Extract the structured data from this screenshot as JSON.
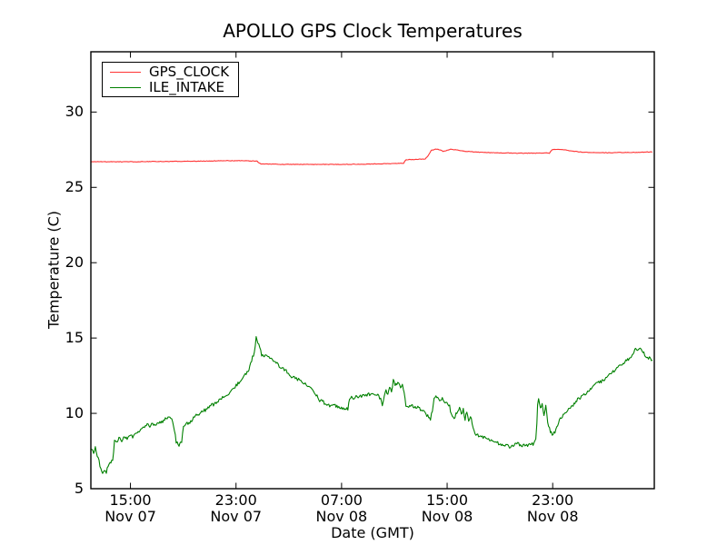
{
  "chart_data": {
    "type": "line",
    "title": "APOLLO GPS Clock Temperatures",
    "xlabel": "Date (GMT)",
    "ylabel": "Temperature (C)",
    "x_unit": "hours since Nov 07 12:00 GMT",
    "xlim": [
      0,
      42.7
    ],
    "ylim": [
      5,
      34
    ],
    "grid": false,
    "frame_color": "#000000",
    "y_ticks": [
      5,
      10,
      15,
      20,
      25,
      30
    ],
    "x_ticks": [
      {
        "h": 3,
        "time": "15:00",
        "date": "Nov 07"
      },
      {
        "h": 11,
        "time": "23:00",
        "date": "Nov 07"
      },
      {
        "h": 19,
        "time": "07:00",
        "date": "Nov 08"
      },
      {
        "h": 27,
        "time": "15:00",
        "date": "Nov 08"
      },
      {
        "h": 35,
        "time": "23:00",
        "date": "Nov 08"
      }
    ],
    "legend": {
      "position": "upper left"
    },
    "series": [
      {
        "name": "GPS_CLOCK",
        "color": "#ff3333",
        "noise": 0.018,
        "points": [
          [
            0,
            26.7
          ],
          [
            2.75,
            26.7
          ],
          [
            5.5,
            26.72
          ],
          [
            8.25,
            26.74
          ],
          [
            10.3,
            26.77
          ],
          [
            11.7,
            26.77
          ],
          [
            12.6,
            26.74
          ],
          [
            12.75,
            26.62
          ],
          [
            12.9,
            26.56
          ],
          [
            14.45,
            26.53
          ],
          [
            17.2,
            26.52
          ],
          [
            19.95,
            26.53
          ],
          [
            22.0,
            26.56
          ],
          [
            23.7,
            26.6
          ],
          [
            23.8,
            26.75
          ],
          [
            23.9,
            26.84
          ],
          [
            24.8,
            26.86
          ],
          [
            25.35,
            26.89
          ],
          [
            25.55,
            27.1
          ],
          [
            25.8,
            27.45
          ],
          [
            26.15,
            27.54
          ],
          [
            26.45,
            27.5
          ],
          [
            26.7,
            27.38
          ],
          [
            27.0,
            27.46
          ],
          [
            27.25,
            27.52
          ],
          [
            27.55,
            27.5
          ],
          [
            27.9,
            27.46
          ],
          [
            28.2,
            27.41
          ],
          [
            28.9,
            27.36
          ],
          [
            29.95,
            27.31
          ],
          [
            31.0,
            27.29
          ],
          [
            32.35,
            27.27
          ],
          [
            33.7,
            27.27
          ],
          [
            34.75,
            27.28
          ],
          [
            34.85,
            27.38
          ],
          [
            34.95,
            27.48
          ],
          [
            35.05,
            27.51
          ],
          [
            35.3,
            27.52
          ],
          [
            35.8,
            27.5
          ],
          [
            36.35,
            27.42
          ],
          [
            37.15,
            27.34
          ],
          [
            38.2,
            27.31
          ],
          [
            39.25,
            27.3
          ],
          [
            40.6,
            27.32
          ],
          [
            41.65,
            27.33
          ],
          [
            42.55,
            27.35
          ]
        ]
      },
      {
        "name": "ILE_INTAKE",
        "color": "#008000",
        "noise": 0.11,
        "points": [
          [
            0,
            7.6
          ],
          [
            0.21,
            7.4
          ],
          [
            0.34,
            7.8
          ],
          [
            0.48,
            7.2
          ],
          [
            0.62,
            6.8
          ],
          [
            0.76,
            6.3
          ],
          [
            0.89,
            5.95
          ],
          [
            1.03,
            6.3
          ],
          [
            1.17,
            6.1
          ],
          [
            1.31,
            6.5
          ],
          [
            1.45,
            6.75
          ],
          [
            1.65,
            6.8
          ],
          [
            1.72,
            7.5
          ],
          [
            1.79,
            8.2
          ],
          [
            1.93,
            8.1
          ],
          [
            2.13,
            8.4
          ],
          [
            2.34,
            8.2
          ],
          [
            2.55,
            8.5
          ],
          [
            2.75,
            8.3
          ],
          [
            2.96,
            8.6
          ],
          [
            3.17,
            8.4
          ],
          [
            3.44,
            8.7
          ],
          [
            3.72,
            8.9
          ],
          [
            3.99,
            9.1
          ],
          [
            4.27,
            9.3
          ],
          [
            4.47,
            9.1
          ],
          [
            4.68,
            9.35
          ],
          [
            4.89,
            9.2
          ],
          [
            5.09,
            9.45
          ],
          [
            5.3,
            9.35
          ],
          [
            5.51,
            9.55
          ],
          [
            5.71,
            9.65
          ],
          [
            5.92,
            9.8
          ],
          [
            6.13,
            9.6
          ],
          [
            6.33,
            8.9
          ],
          [
            6.47,
            8.1
          ],
          [
            6.68,
            7.85
          ],
          [
            6.88,
            8.1
          ],
          [
            7.02,
            9.1
          ],
          [
            7.23,
            9.4
          ],
          [
            7.43,
            9.3
          ],
          [
            7.71,
            9.6
          ],
          [
            7.98,
            9.9
          ],
          [
            8.26,
            10.0
          ],
          [
            8.53,
            10.15
          ],
          [
            8.81,
            10.3
          ],
          [
            9.08,
            10.55
          ],
          [
            9.36,
            10.6
          ],
          [
            9.64,
            10.8
          ],
          [
            9.98,
            11.05
          ],
          [
            10.32,
            11.25
          ],
          [
            10.67,
            11.55
          ],
          [
            11.01,
            11.85
          ],
          [
            11.36,
            12.15
          ],
          [
            11.7,
            12.55
          ],
          [
            11.98,
            12.95
          ],
          [
            12.18,
            13.5
          ],
          [
            12.39,
            14.1
          ],
          [
            12.53,
            15.0
          ],
          [
            12.66,
            14.75
          ],
          [
            12.8,
            14.4
          ],
          [
            12.94,
            13.9
          ],
          [
            13.21,
            13.8
          ],
          [
            13.49,
            13.7
          ],
          [
            13.76,
            13.6
          ],
          [
            14.11,
            13.3
          ],
          [
            14.45,
            13.0
          ],
          [
            14.8,
            12.8
          ],
          [
            15.14,
            12.5
          ],
          [
            15.49,
            12.35
          ],
          [
            15.83,
            12.2
          ],
          [
            16.17,
            11.95
          ],
          [
            16.52,
            11.8
          ],
          [
            16.86,
            11.5
          ],
          [
            17.14,
            11.15
          ],
          [
            17.34,
            10.8
          ],
          [
            17.48,
            11.0
          ],
          [
            17.69,
            10.7
          ],
          [
            17.89,
            10.6
          ],
          [
            18.17,
            10.5
          ],
          [
            18.44,
            10.5
          ],
          [
            18.72,
            10.45
          ],
          [
            18.99,
            10.4
          ],
          [
            19.27,
            10.3
          ],
          [
            19.48,
            10.3
          ],
          [
            19.61,
            11.0
          ],
          [
            19.89,
            11.05
          ],
          [
            20.17,
            11.1
          ],
          [
            20.51,
            11.15
          ],
          [
            20.85,
            11.2
          ],
          [
            21.2,
            11.3
          ],
          [
            21.54,
            11.3
          ],
          [
            21.82,
            11.15
          ],
          [
            21.96,
            10.95
          ],
          [
            22.09,
            10.55
          ],
          [
            22.23,
            11.1
          ],
          [
            22.37,
            11.5
          ],
          [
            22.51,
            11.25
          ],
          [
            22.64,
            11.7
          ],
          [
            22.78,
            11.5
          ],
          [
            22.92,
            12.15
          ],
          [
            23.06,
            11.95
          ],
          [
            23.19,
            11.8
          ],
          [
            23.33,
            12.1
          ],
          [
            23.47,
            11.65
          ],
          [
            23.61,
            11.9
          ],
          [
            23.74,
            11.3
          ],
          [
            23.88,
            10.5
          ],
          [
            24.16,
            10.45
          ],
          [
            24.43,
            10.5
          ],
          [
            24.71,
            10.4
          ],
          [
            24.98,
            10.25
          ],
          [
            25.26,
            10.05
          ],
          [
            25.53,
            9.85
          ],
          [
            25.74,
            9.65
          ],
          [
            25.88,
            10.2
          ],
          [
            26.01,
            11.05
          ],
          [
            26.22,
            11.1
          ],
          [
            26.43,
            10.9
          ],
          [
            26.63,
            11.0
          ],
          [
            26.84,
            10.7
          ],
          [
            27.05,
            10.6
          ],
          [
            27.19,
            10.45
          ],
          [
            27.32,
            9.9
          ],
          [
            27.53,
            9.65
          ],
          [
            27.67,
            9.95
          ],
          [
            27.8,
            10.15
          ],
          [
            27.94,
            10.45
          ],
          [
            28.08,
            9.85
          ],
          [
            28.22,
            10.3
          ],
          [
            28.36,
            9.6
          ],
          [
            28.49,
            10.1
          ],
          [
            28.63,
            9.5
          ],
          [
            28.77,
            9.8
          ],
          [
            28.9,
            9.3
          ],
          [
            29.04,
            8.75
          ],
          [
            29.25,
            8.6
          ],
          [
            29.53,
            8.5
          ],
          [
            29.8,
            8.4
          ],
          [
            30.08,
            8.3
          ],
          [
            30.35,
            8.2
          ],
          [
            30.63,
            8.1
          ],
          [
            30.9,
            8.0
          ],
          [
            31.18,
            7.9
          ],
          [
            31.45,
            7.85
          ],
          [
            31.73,
            7.8
          ],
          [
            32.0,
            7.8
          ],
          [
            32.21,
            7.95
          ],
          [
            32.35,
            8.1
          ],
          [
            32.49,
            7.9
          ],
          [
            32.76,
            7.85
          ],
          [
            33.03,
            7.9
          ],
          [
            33.31,
            7.95
          ],
          [
            33.58,
            8.0
          ],
          [
            33.72,
            8.2
          ],
          [
            33.8,
            9.3
          ],
          [
            33.86,
            10.5
          ],
          [
            33.93,
            10.9
          ],
          [
            34.07,
            10.3
          ],
          [
            34.2,
            10.7
          ],
          [
            34.34,
            9.9
          ],
          [
            34.48,
            10.45
          ],
          [
            34.62,
            9.4
          ],
          [
            34.76,
            8.95
          ],
          [
            34.89,
            8.7
          ],
          [
            35.03,
            8.6
          ],
          [
            35.17,
            8.8
          ],
          [
            35.31,
            9.15
          ],
          [
            35.44,
            9.4
          ],
          [
            35.58,
            9.65
          ],
          [
            35.79,
            9.9
          ],
          [
            36.0,
            10.1
          ],
          [
            36.2,
            10.3
          ],
          [
            36.48,
            10.5
          ],
          [
            36.68,
            10.7
          ],
          [
            36.89,
            10.9
          ],
          [
            37.16,
            11.05
          ],
          [
            37.37,
            11.2
          ],
          [
            37.58,
            11.4
          ],
          [
            37.85,
            11.6
          ],
          [
            38.13,
            11.8
          ],
          [
            38.4,
            12.0
          ],
          [
            38.68,
            12.1
          ],
          [
            38.95,
            12.3
          ],
          [
            39.23,
            12.5
          ],
          [
            39.5,
            12.7
          ],
          [
            39.78,
            12.9
          ],
          [
            40.06,
            13.1
          ],
          [
            40.33,
            13.3
          ],
          [
            40.61,
            13.5
          ],
          [
            40.88,
            13.75
          ],
          [
            41.09,
            14.0
          ],
          [
            41.29,
            14.35
          ],
          [
            41.43,
            14.15
          ],
          [
            41.64,
            14.3
          ],
          [
            41.84,
            14.05
          ],
          [
            42.05,
            13.85
          ],
          [
            42.26,
            13.7
          ],
          [
            42.55,
            13.55
          ]
        ]
      }
    ]
  }
}
